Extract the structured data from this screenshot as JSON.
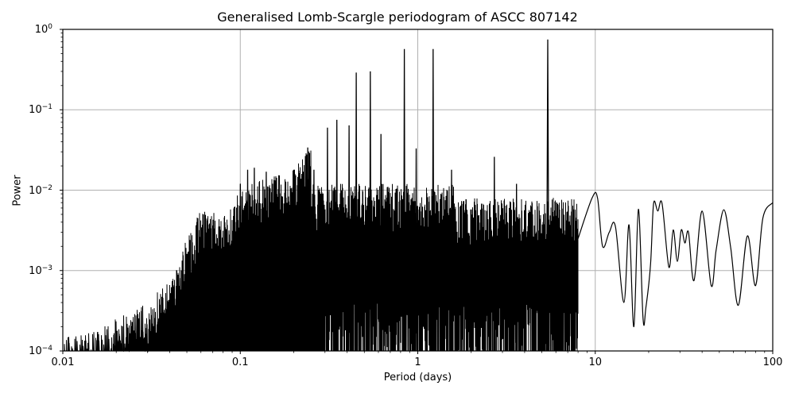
{
  "chart_data": {
    "type": "line",
    "title": "Generalised Lomb-Scargle periodogram of ASCC 807142",
    "xlabel": "Period (days)",
    "ylabel": "Power",
    "xscale": "log",
    "yscale": "log",
    "xlim": [
      0.01,
      100
    ],
    "ylim": [
      0.0001,
      1
    ],
    "grid": true,
    "legend": null,
    "xticks": [
      {
        "value": 0.01,
        "label": "0.01"
      },
      {
        "value": 0.1,
        "label": "0.1"
      },
      {
        "value": 1,
        "label": "1"
      },
      {
        "value": 10,
        "label": "10"
      },
      {
        "value": 100,
        "label": "100"
      }
    ],
    "yticks": [
      {
        "value": 1,
        "base": "10",
        "exp": "0"
      },
      {
        "value": 0.1,
        "base": "10",
        "exp": "−1"
      },
      {
        "value": 0.01,
        "base": "10",
        "exp": "−2"
      },
      {
        "value": 0.001,
        "base": "10",
        "exp": "−3"
      },
      {
        "value": 0.0001,
        "base": "10",
        "exp": "−4"
      }
    ],
    "line_color": "#000000",
    "grid_color": "#b0b0b0",
    "major_peaks": [
      {
        "period": 5.4,
        "power": 0.75
      },
      {
        "period": 1.22,
        "power": 0.57
      },
      {
        "period": 0.84,
        "power": 0.57
      },
      {
        "period": 0.54,
        "power": 0.3
      },
      {
        "period": 0.45,
        "power": 0.29
      },
      {
        "period": 0.35,
        "power": 0.075
      },
      {
        "period": 0.31,
        "power": 0.06
      },
      {
        "period": 0.41,
        "power": 0.064
      },
      {
        "period": 0.62,
        "power": 0.05
      },
      {
        "period": 0.98,
        "power": 0.033
      },
      {
        "period": 0.24,
        "power": 0.034
      },
      {
        "period": 2.7,
        "power": 0.026
      },
      {
        "period": 0.26,
        "power": 0.018
      },
      {
        "period": 0.2,
        "power": 0.018
      },
      {
        "period": 0.11,
        "power": 0.018
      },
      {
        "period": 0.12,
        "power": 0.019
      },
      {
        "period": 0.14,
        "power": 0.017
      },
      {
        "period": 0.1,
        "power": 0.012
      },
      {
        "period": 1.55,
        "power": 0.018
      },
      {
        "period": 3.6,
        "power": 0.012
      }
    ],
    "envelope": [
      {
        "period": 0.01,
        "power": 0.00015
      },
      {
        "period": 0.015,
        "power": 0.00018
      },
      {
        "period": 0.02,
        "power": 0.00025
      },
      {
        "period": 0.03,
        "power": 0.0004
      },
      {
        "period": 0.04,
        "power": 0.0008
      },
      {
        "period": 0.05,
        "power": 0.0025
      },
      {
        "period": 0.06,
        "power": 0.006
      },
      {
        "period": 0.08,
        "power": 0.005
      },
      {
        "period": 0.1,
        "power": 0.012
      },
      {
        "period": 0.2,
        "power": 0.018
      },
      {
        "period": 0.3,
        "power": 0.06
      },
      {
        "period": 0.5,
        "power": 0.3
      },
      {
        "period": 1.0,
        "power": 0.57
      },
      {
        "period": 2.0,
        "power": 0.01
      },
      {
        "period": 3.0,
        "power": 0.01
      },
      {
        "period": 5.4,
        "power": 0.75
      },
      {
        "period": 10,
        "power": 0.008
      }
    ],
    "long_period_curve": [
      {
        "period": 8.0,
        "power": 0.0025
      },
      {
        "period": 9.6,
        "power": 0.008
      },
      {
        "period": 10.3,
        "power": 0.008
      },
      {
        "period": 11.0,
        "power": 0.002
      },
      {
        "period": 12.0,
        "power": 0.003
      },
      {
        "period": 13.0,
        "power": 0.0035
      },
      {
        "period": 14.5,
        "power": 0.0004
      },
      {
        "period": 15.5,
        "power": 0.0037
      },
      {
        "period": 16.5,
        "power": 0.0002
      },
      {
        "period": 17.5,
        "power": 0.0058
      },
      {
        "period": 18.6,
        "power": 0.00025
      },
      {
        "period": 19.3,
        "power": 0.00035
      },
      {
        "period": 20.5,
        "power": 0.0012
      },
      {
        "period": 21.3,
        "power": 0.0068
      },
      {
        "period": 22.5,
        "power": 0.0055
      },
      {
        "period": 23.8,
        "power": 0.0068
      },
      {
        "period": 26.0,
        "power": 0.0011
      },
      {
        "period": 27.5,
        "power": 0.0032
      },
      {
        "period": 29.0,
        "power": 0.0013
      },
      {
        "period": 30.5,
        "power": 0.0032
      },
      {
        "period": 32.0,
        "power": 0.0022
      },
      {
        "period": 33.5,
        "power": 0.003
      },
      {
        "period": 36.0,
        "power": 0.00075
      },
      {
        "period": 40.0,
        "power": 0.0055
      },
      {
        "period": 45.0,
        "power": 0.00065
      },
      {
        "period": 48.0,
        "power": 0.0018
      },
      {
        "period": 53.0,
        "power": 0.0057
      },
      {
        "period": 58.0,
        "power": 0.0019
      },
      {
        "period": 64.0,
        "power": 0.00037
      },
      {
        "period": 72.0,
        "power": 0.0027
      },
      {
        "period": 80.0,
        "power": 0.00065
      },
      {
        "period": 88.0,
        "power": 0.0045
      },
      {
        "period": 100.0,
        "power": 0.007
      }
    ]
  }
}
